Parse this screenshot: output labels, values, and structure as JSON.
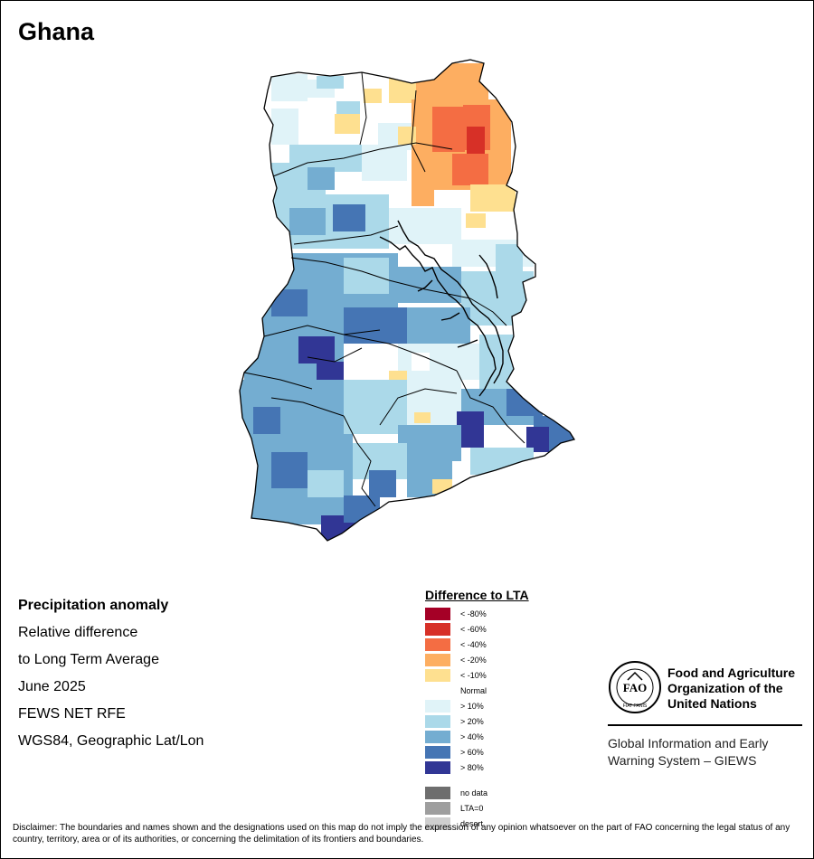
{
  "title": "Ghana",
  "info": {
    "heading": "Precipitation anomaly",
    "line1": "Relative difference",
    "line2": "to Long Term Average",
    "period": "June 2025",
    "source": "FEWS NET RFE",
    "projection": "WGS84, Geographic Lat/Lon"
  },
  "legend": {
    "title": "Difference to LTA",
    "items": [
      {
        "label": "< -80%",
        "color": "#a50026"
      },
      {
        "label": "< -60%",
        "color": "#d73027"
      },
      {
        "label": "< -40%",
        "color": "#f46d43"
      },
      {
        "label": "< -20%",
        "color": "#fdae61"
      },
      {
        "label": "< -10%",
        "color": "#fee090"
      },
      {
        "label": "Normal",
        "color": "#ffffff"
      },
      {
        "label": "> 10%",
        "color": "#e0f3f8"
      },
      {
        "label": "> 20%",
        "color": "#abd9e9"
      },
      {
        "label": "> 40%",
        "color": "#74add1"
      },
      {
        "label": "> 60%",
        "color": "#4575b4"
      },
      {
        "label": "> 80%",
        "color": "#313695"
      },
      {
        "label": "no data",
        "color": "#6e6e6e"
      },
      {
        "label": "LTA=0",
        "color": "#9e9e9e"
      },
      {
        "label": "desert",
        "color": "#cfcfcf"
      }
    ]
  },
  "fao": {
    "name_line1": "Food and Agriculture",
    "name_line2": "Organization of the",
    "name_line3": "United Nations",
    "logo_letters": "FAO",
    "logo_motto": "FIAT PANIS",
    "giews_line1": "Global Information and Early",
    "giews_line2": "Warning System – GIEWS"
  },
  "disclaimer": "Disclaimer: The boundaries and names shown and the designations used on this map do not imply the expression of any opinion whatsoever on the part of FAO concerning the legal status of any country, territory, area or of its authorities, or concerning the delimitation of its frontiers and boundaries."
}
